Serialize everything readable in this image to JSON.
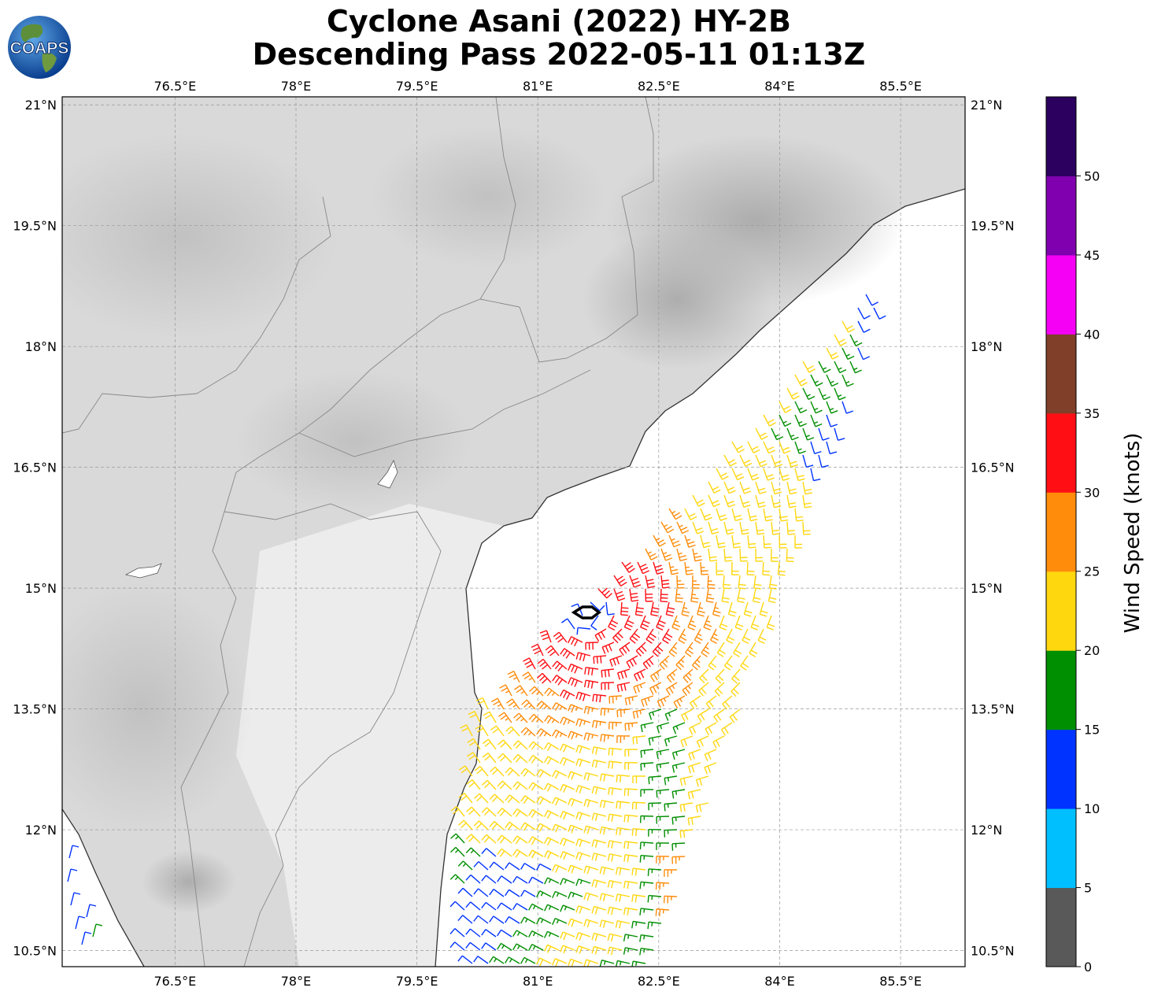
{
  "header": {
    "title_line1": "Cyclone Asani (2022) HY-2B",
    "title_line2": "Descending Pass 2022-05-11 01:13Z",
    "logo_text": "COAPS"
  },
  "map": {
    "lon_range": [
      75.1,
      86.3
    ],
    "lat_range": [
      10.3,
      21.1
    ],
    "lon_ticks": [
      {
        "value": 76.5,
        "label": "76.5°E"
      },
      {
        "value": 78,
        "label": "78°E"
      },
      {
        "value": 79.5,
        "label": "79.5°E"
      },
      {
        "value": 81,
        "label": "81°E"
      },
      {
        "value": 82.5,
        "label": "82.5°E"
      },
      {
        "value": 84,
        "label": "84°E"
      },
      {
        "value": 85.5,
        "label": "85.5°E"
      }
    ],
    "lat_ticks": [
      {
        "value": 21,
        "label": "21°N"
      },
      {
        "value": 19.5,
        "label": "19.5°N"
      },
      {
        "value": 18,
        "label": "18°N"
      },
      {
        "value": 16.5,
        "label": "16.5°N"
      },
      {
        "value": 15,
        "label": "15°N"
      },
      {
        "value": 13.5,
        "label": "13.5°N"
      },
      {
        "value": 12,
        "label": "12°N"
      },
      {
        "value": 10.5,
        "label": "10.5°N"
      }
    ],
    "grid": true,
    "land_color": "#d9d9d9",
    "ocean_color": "#ffffff",
    "storm_center": {
      "lon": 81.6,
      "lat": 14.7
    }
  },
  "colorbar": {
    "label": "Wind Speed (knots)",
    "ticks": [
      "0",
      "5",
      "10",
      "15",
      "20",
      "25",
      "30",
      "35",
      "40",
      "45",
      "50"
    ],
    "colors": [
      "#595959",
      "#00bfff",
      "#0033ff",
      "#008f00",
      "#ffd70f",
      "#ff8c0a",
      "#ff0f14",
      "#7f3f28",
      "#f500f5",
      "#8000b0",
      "#2b005e"
    ]
  }
}
